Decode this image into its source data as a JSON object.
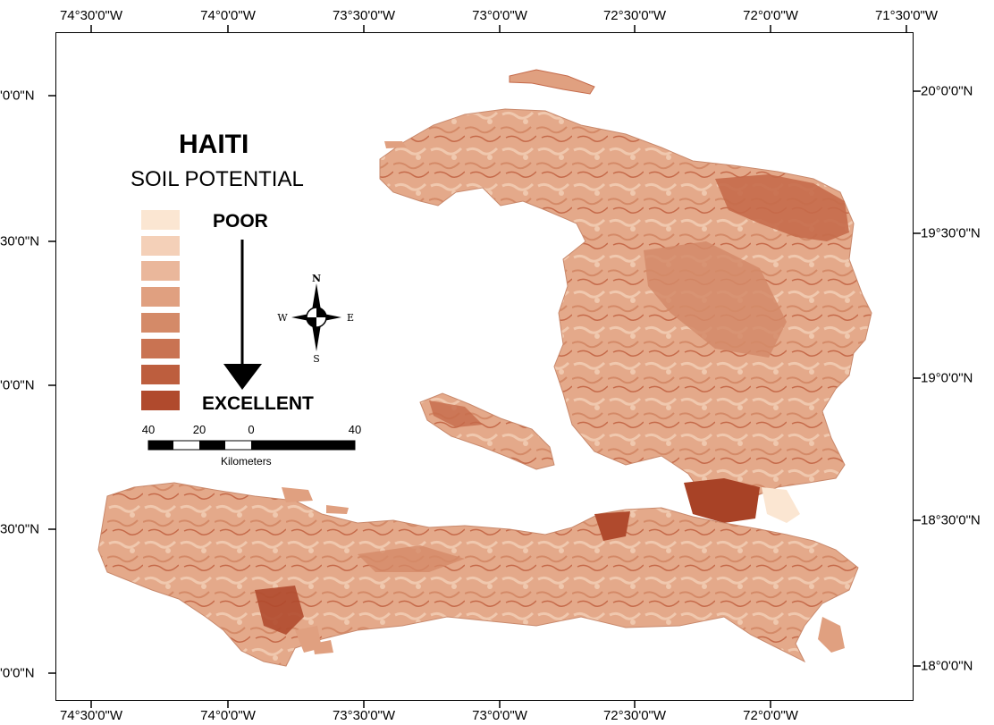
{
  "map": {
    "title": "HAITI",
    "subtitle": "SOIL POTENTIAL",
    "legend": {
      "classes": [
        "#fbe6d2",
        "#f4d0b8",
        "#eab79b",
        "#e0a080",
        "#d48a68",
        "#c97352",
        "#bd5e3e",
        "#b04a2d"
      ],
      "label_top": "POOR",
      "label_bottom": "EXCELLENT"
    },
    "north_arrow": {
      "n": "N",
      "s": "S",
      "e": "E",
      "w": "W"
    },
    "scalebar": {
      "ticks": [
        "40",
        "20",
        "0",
        "40"
      ],
      "unit": "Kilometers"
    },
    "longitude_labels": [
      "74°30'0\"W",
      "74°0'0\"W",
      "73°30'0\"W",
      "73°0'0\"W",
      "72°30'0\"W",
      "72°0'0\"W",
      "71°30'0\"W"
    ],
    "latitude_labels_right": [
      "20°0'0\"N",
      "19°30'0\"N",
      "19°0'0\"N",
      "18°30'0\"N",
      "18°0'0\"N"
    ],
    "latitude_labels_left": [
      "'0'0\"N",
      "30'0\"N",
      "'0'0\"N",
      "30'0\"N",
      "'0'0\"N"
    ],
    "land_colors": {
      "base": "#e4a98a",
      "light": "#f0c8ae",
      "dark": "#c56a4a",
      "darkest": "#a84226"
    }
  }
}
